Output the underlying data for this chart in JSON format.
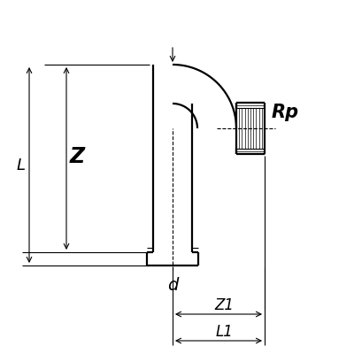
{
  "bg_color": "#ffffff",
  "line_color": "#000000",
  "fig_size": [
    4.0,
    4.0
  ],
  "dpi": 100,
  "labels": {
    "Z": "Z",
    "L": "L",
    "d": "d",
    "Z1": "Z1",
    "L1": "L1",
    "Rp": "Rp"
  },
  "lw_main": 1.6,
  "lw_thin": 0.8,
  "lw_hatch": 0.5
}
